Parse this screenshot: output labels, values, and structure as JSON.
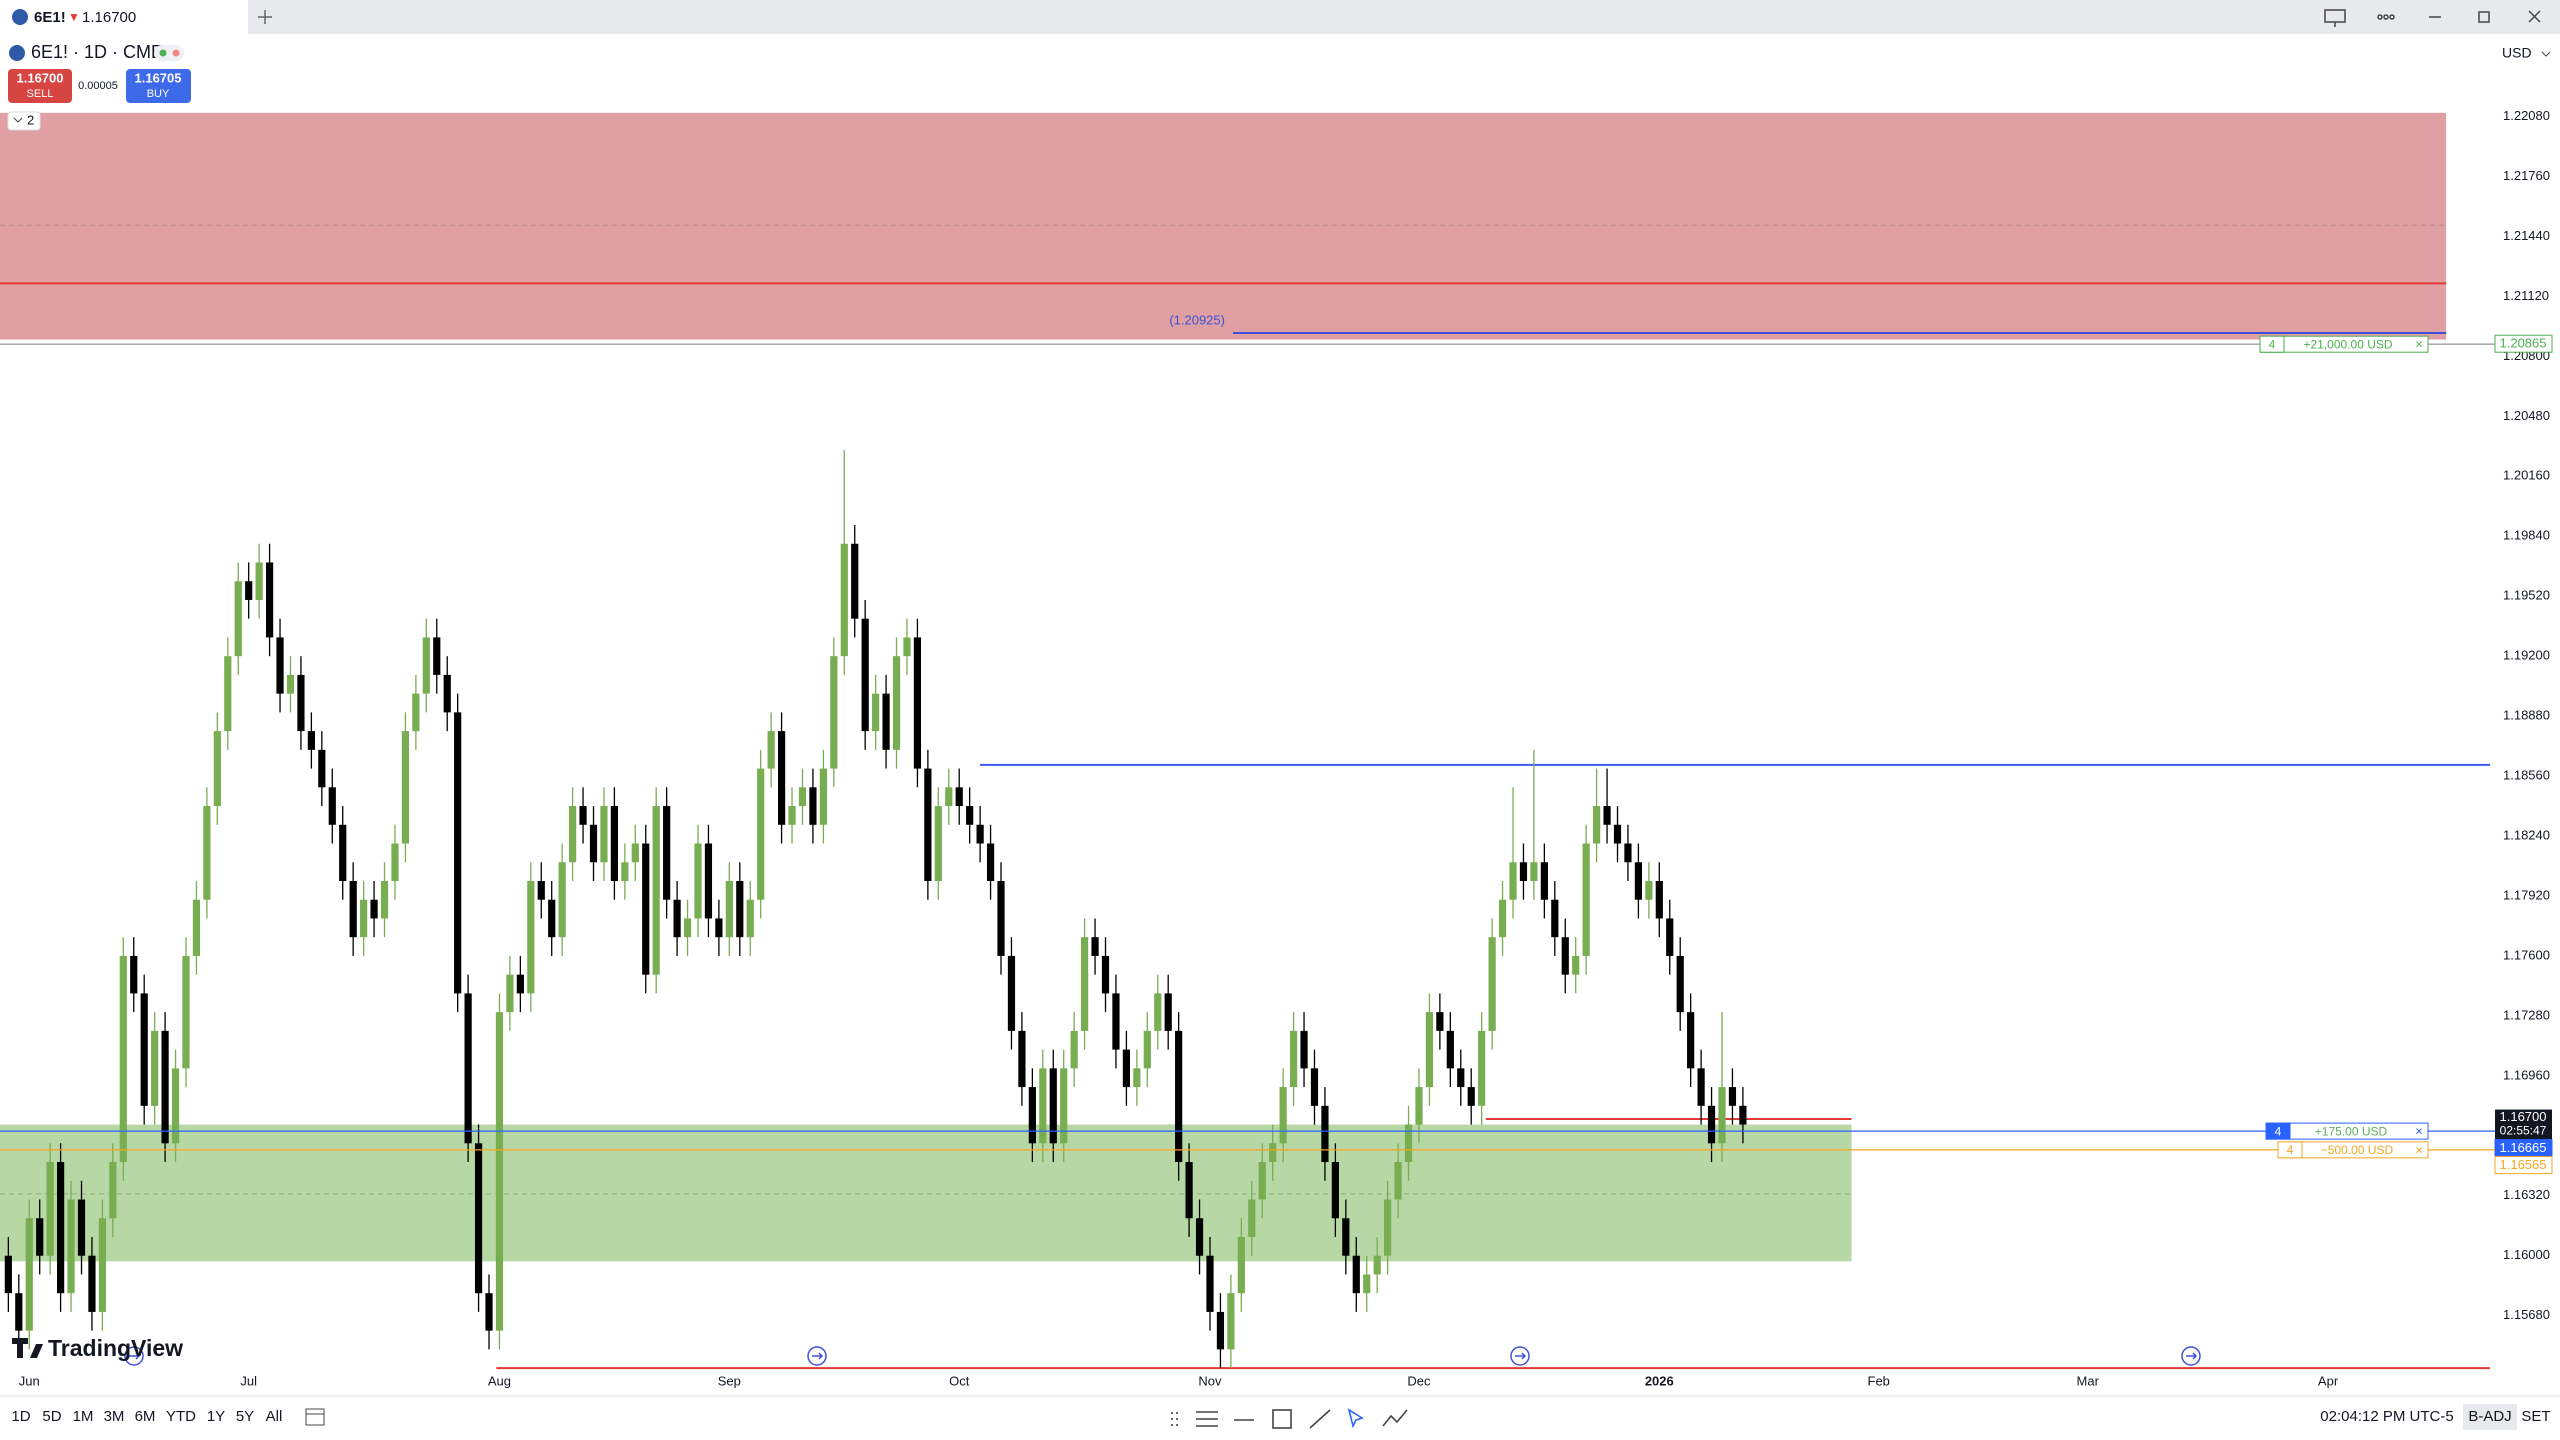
{
  "tab": {
    "symbol": "6E1!",
    "arrow": "▼",
    "price": "1.16700"
  },
  "header": {
    "symbol": "6E1! · 1D · CME",
    "sell_price": "1.16700",
    "sell": "SELL",
    "spread": "0.00005",
    "buy_price": "1.16705",
    "buy": "BUY",
    "currency": "USD",
    "indicators": "2"
  },
  "logo": "TradingView",
  "toolbar": {
    "ranges": [
      "1D",
      "5D",
      "1M",
      "3M",
      "6M",
      "YTD",
      "1Y",
      "5Y",
      "All"
    ],
    "clock": "02:04:12 PM UTC-5",
    "adjust": "B-ADJ",
    "settings": "SET"
  },
  "chart_data": {
    "type": "candlestick",
    "up_color": "#78ad52",
    "down_color": "#000000",
    "grid": false,
    "open": [
      1.16,
      1.158,
      1.156,
      1.162,
      1.16,
      1.165,
      1.158,
      1.163,
      1.16,
      1.157,
      1.162,
      1.165,
      1.176,
      1.174,
      1.168,
      1.172,
      1.166,
      1.17,
      1.176,
      1.179,
      1.184,
      1.188,
      1.192,
      1.196,
      1.195,
      1.197,
      1.193,
      1.19,
      1.191,
      1.188,
      1.187,
      1.185,
      1.183,
      1.18,
      1.177,
      1.179,
      1.178,
      1.18,
      1.182,
      1.188,
      1.19,
      1.193,
      1.191,
      1.189,
      1.174,
      1.166,
      1.158,
      1.156,
      1.173,
      1.175,
      1.174,
      1.18,
      1.179,
      1.177,
      1.181,
      1.184,
      1.183,
      1.181,
      1.184,
      1.18,
      1.181,
      1.182,
      1.175,
      1.184,
      1.179,
      1.177,
      1.178,
      1.182,
      1.178,
      1.177,
      1.18,
      1.177,
      1.179,
      1.186,
      1.188,
      1.183,
      1.184,
      1.185,
      1.183,
      1.186,
      1.192,
      1.198,
      1.194,
      1.188,
      1.19,
      1.187,
      1.192,
      1.193,
      1.186,
      1.18,
      1.184,
      1.185,
      1.184,
      1.183,
      1.182,
      1.18,
      1.176,
      1.172,
      1.169,
      1.166,
      1.17,
      1.166,
      1.17,
      1.172,
      1.177,
      1.176,
      1.174,
      1.171,
      1.169,
      1.17,
      1.172,
      1.174,
      1.172,
      1.165,
      1.162,
      1.16,
      1.157,
      1.155,
      1.158,
      1.161,
      1.163,
      1.165,
      1.166,
      1.169,
      1.172,
      1.17,
      1.168,
      1.165,
      1.162,
      1.16,
      1.158,
      1.159,
      1.16,
      1.163,
      1.165,
      1.167,
      1.169,
      1.173,
      1.172,
      1.17,
      1.169,
      1.168,
      1.172,
      1.177,
      1.179,
      1.181,
      1.18,
      1.181,
      1.179,
      1.177,
      1.175,
      1.176,
      1.182,
      1.184,
      1.183,
      1.182,
      1.181,
      1.179,
      1.18,
      1.178,
      1.176,
      1.173,
      1.17,
      1.168,
      1.166,
      1.169,
      1.168
    ],
    "high": [
      1.161,
      1.159,
      1.163,
      1.163,
      1.166,
      1.166,
      1.164,
      1.164,
      1.161,
      1.163,
      1.166,
      1.177,
      1.177,
      1.175,
      1.173,
      1.173,
      1.171,
      1.177,
      1.18,
      1.185,
      1.189,
      1.193,
      1.197,
      1.197,
      1.198,
      1.198,
      1.194,
      1.192,
      1.192,
      1.189,
      1.188,
      1.186,
      1.184,
      1.181,
      1.18,
      1.18,
      1.181,
      1.183,
      1.189,
      1.191,
      1.194,
      1.194,
      1.192,
      1.19,
      1.175,
      1.167,
      1.159,
      1.174,
      1.176,
      1.176,
      1.181,
      1.181,
      1.18,
      1.182,
      1.185,
      1.185,
      1.184,
      1.185,
      1.185,
      1.182,
      1.183,
      1.183,
      1.185,
      1.185,
      1.18,
      1.179,
      1.183,
      1.183,
      1.179,
      1.181,
      1.181,
      1.18,
      1.187,
      1.189,
      1.189,
      1.185,
      1.186,
      1.186,
      1.187,
      1.193,
      1.203,
      1.199,
      1.195,
      1.191,
      1.191,
      1.193,
      1.194,
      1.194,
      1.187,
      1.185,
      1.186,
      1.186,
      1.185,
      1.184,
      1.183,
      1.181,
      1.177,
      1.173,
      1.17,
      1.171,
      1.171,
      1.171,
      1.173,
      1.178,
      1.178,
      1.177,
      1.175,
      1.172,
      1.171,
      1.173,
      1.175,
      1.175,
      1.173,
      1.166,
      1.163,
      1.161,
      1.158,
      1.159,
      1.162,
      1.164,
      1.166,
      1.167,
      1.17,
      1.173,
      1.173,
      1.171,
      1.169,
      1.166,
      1.163,
      1.161,
      1.16,
      1.161,
      1.164,
      1.166,
      1.168,
      1.17,
      1.174,
      1.174,
      1.173,
      1.171,
      1.17,
      1.173,
      1.178,
      1.18,
      1.185,
      1.182,
      1.187,
      1.182,
      1.18,
      1.178,
      1.177,
      1.183,
      1.186,
      1.186,
      1.184,
      1.183,
      1.182,
      1.181,
      1.181,
      1.179,
      1.177,
      1.174,
      1.171,
      1.169,
      1.173,
      1.17,
      1.169
    ],
    "low": [
      1.157,
      1.155,
      1.155,
      1.159,
      1.159,
      1.157,
      1.157,
      1.159,
      1.156,
      1.156,
      1.161,
      1.164,
      1.173,
      1.167,
      1.167,
      1.165,
      1.165,
      1.169,
      1.175,
      1.178,
      1.183,
      1.187,
      1.191,
      1.194,
      1.194,
      1.192,
      1.189,
      1.189,
      1.187,
      1.186,
      1.184,
      1.182,
      1.179,
      1.176,
      1.176,
      1.177,
      1.177,
      1.179,
      1.181,
      1.187,
      1.189,
      1.19,
      1.188,
      1.173,
      1.165,
      1.157,
      1.155,
      1.155,
      1.172,
      1.173,
      1.173,
      1.178,
      1.176,
      1.176,
      1.18,
      1.182,
      1.18,
      1.18,
      1.179,
      1.179,
      1.18,
      1.174,
      1.174,
      1.178,
      1.176,
      1.176,
      1.177,
      1.177,
      1.176,
      1.176,
      1.176,
      1.176,
      1.178,
      1.185,
      1.182,
      1.182,
      1.183,
      1.182,
      1.182,
      1.185,
      1.191,
      1.193,
      1.187,
      1.187,
      1.186,
      1.186,
      1.191,
      1.185,
      1.179,
      1.179,
      1.183,
      1.183,
      1.182,
      1.181,
      1.179,
      1.175,
      1.171,
      1.168,
      1.165,
      1.165,
      1.165,
      1.165,
      1.169,
      1.171,
      1.175,
      1.173,
      1.17,
      1.168,
      1.168,
      1.169,
      1.171,
      1.171,
      1.164,
      1.161,
      1.159,
      1.156,
      1.154,
      1.154,
      1.157,
      1.16,
      1.162,
      1.164,
      1.165,
      1.168,
      1.169,
      1.167,
      1.164,
      1.161,
      1.159,
      1.157,
      1.157,
      1.158,
      1.159,
      1.162,
      1.164,
      1.166,
      1.168,
      1.171,
      1.169,
      1.168,
      1.167,
      1.167,
      1.171,
      1.176,
      1.178,
      1.179,
      1.179,
      1.178,
      1.176,
      1.174,
      1.174,
      1.175,
      1.181,
      1.182,
      1.181,
      1.18,
      1.178,
      1.178,
      1.177,
      1.175,
      1.172,
      1.169,
      1.167,
      1.165,
      1.165,
      1.167,
      1.166
    ],
    "close": [
      1.158,
      1.156,
      1.162,
      1.16,
      1.165,
      1.158,
      1.163,
      1.16,
      1.157,
      1.162,
      1.165,
      1.176,
      1.174,
      1.168,
      1.172,
      1.166,
      1.17,
      1.176,
      1.179,
      1.184,
      1.188,
      1.192,
      1.196,
      1.195,
      1.197,
      1.193,
      1.19,
      1.191,
      1.188,
      1.187,
      1.185,
      1.183,
      1.18,
      1.177,
      1.179,
      1.178,
      1.18,
      1.182,
      1.188,
      1.19,
      1.193,
      1.191,
      1.189,
      1.174,
      1.166,
      1.158,
      1.156,
      1.173,
      1.175,
      1.174,
      1.18,
      1.179,
      1.177,
      1.181,
      1.184,
      1.183,
      1.181,
      1.184,
      1.18,
      1.181,
      1.182,
      1.175,
      1.184,
      1.179,
      1.177,
      1.178,
      1.182,
      1.178,
      1.177,
      1.18,
      1.177,
      1.179,
      1.186,
      1.188,
      1.183,
      1.184,
      1.185,
      1.183,
      1.186,
      1.192,
      1.198,
      1.194,
      1.188,
      1.19,
      1.187,
      1.192,
      1.193,
      1.186,
      1.18,
      1.184,
      1.185,
      1.184,
      1.183,
      1.182,
      1.18,
      1.176,
      1.172,
      1.169,
      1.166,
      1.17,
      1.166,
      1.17,
      1.172,
      1.177,
      1.176,
      1.174,
      1.171,
      1.169,
      1.17,
      1.172,
      1.174,
      1.172,
      1.165,
      1.162,
      1.16,
      1.157,
      1.155,
      1.158,
      1.161,
      1.163,
      1.165,
      1.166,
      1.169,
      1.172,
      1.17,
      1.168,
      1.165,
      1.162,
      1.16,
      1.158,
      1.159,
      1.16,
      1.163,
      1.165,
      1.167,
      1.169,
      1.173,
      1.172,
      1.17,
      1.169,
      1.168,
      1.172,
      1.177,
      1.179,
      1.181,
      1.18,
      1.181,
      1.179,
      1.177,
      1.175,
      1.176,
      1.182,
      1.184,
      1.183,
      1.182,
      1.181,
      1.179,
      1.18,
      1.178,
      1.176,
      1.173,
      1.17,
      1.168,
      1.166,
      1.169,
      1.168,
      1.167
    ],
    "xlim": [
      -0.8,
      237.5
    ],
    "xticks": [
      {
        "value": 2,
        "label": "Jun"
      },
      {
        "value": 23,
        "label": "Jul"
      },
      {
        "value": 47,
        "label": "Aug"
      },
      {
        "value": 69,
        "label": "Sep"
      },
      {
        "value": 91,
        "label": "Oct"
      },
      {
        "value": 115,
        "label": "Nov"
      },
      {
        "value": 135,
        "label": "Dec"
      },
      {
        "value": 158,
        "label": "2026",
        "bold": true
      },
      {
        "value": 179,
        "label": "Feb"
      },
      {
        "value": 199,
        "label": "Mar"
      },
      {
        "value": 222,
        "label": "Apr"
      }
    ],
    "ylim": [
      1.1539,
      1.2251
    ],
    "yticks": [
      {
        "value": 1.2208,
        "label": "1.22080"
      },
      {
        "value": 1.2176,
        "label": "1.21760"
      },
      {
        "value": 1.2144,
        "label": "1.21440"
      },
      {
        "value": 1.2112,
        "label": "1.21120"
      },
      {
        "value": 1.208,
        "label": "1.20800"
      },
      {
        "value": 1.2048,
        "label": "1.20480"
      },
      {
        "value": 1.2016,
        "label": "1.20160"
      },
      {
        "value": 1.1984,
        "label": "1.19840"
      },
      {
        "value": 1.1952,
        "label": "1.19520"
      },
      {
        "value": 1.192,
        "label": "1.19200"
      },
      {
        "value": 1.1888,
        "label": "1.18880"
      },
      {
        "value": 1.1856,
        "label": "1.18560"
      },
      {
        "value": 1.1824,
        "label": "1.18240"
      },
      {
        "value": 1.1792,
        "label": "1.17920"
      },
      {
        "value": 1.176,
        "label": "1.17600"
      },
      {
        "value": 1.1728,
        "label": "1.17280"
      },
      {
        "value": 1.1696,
        "label": "1.16960"
      },
      {
        "value": 1.1632,
        "label": "1.16320"
      },
      {
        "value": 1.16,
        "label": "1.16000"
      },
      {
        "value": 1.1568,
        "label": "1.15680"
      }
    ],
    "zones": [
      {
        "top": 1.221,
        "bottom": 1.2089,
        "start": -0.8,
        "end": 233.3,
        "color": "#e09fa3"
      },
      {
        "top": 1.167,
        "bottom": 1.1597,
        "start": -0.8,
        "end": 176.4,
        "color": "#b7d7a5"
      }
    ],
    "lines": [
      {
        "value": 1.215,
        "start": -0.8,
        "end": 233.3,
        "color": "#b98c8e",
        "dashed": true
      },
      {
        "value": 1.2119,
        "start": -0.8,
        "end": 233.3,
        "color": "#e53935"
      },
      {
        "value": 1.20925,
        "label": "(1.20925)",
        "start": 117.2,
        "end": 233.3,
        "color": "#3f51d8"
      },
      {
        "value": 1.1862,
        "start": 93,
        "end": 237.5,
        "color": "#3d5afe"
      },
      {
        "value": 1.1673,
        "start": 141.4,
        "end": 176.4,
        "color": "#e53935"
      },
      {
        "value": 1.1633,
        "start": -0.8,
        "end": 176.4,
        "color": "#8fae80",
        "dashed": true
      },
      {
        "value": 1.154,
        "start": 46.7,
        "end": 237.5,
        "color": "#e53935"
      }
    ],
    "orders": [
      {
        "value": 1.20865,
        "label": "1.20865",
        "qty": "4",
        "pnl": "+21,000.00 USD",
        "cancel": "×",
        "color": "#4caf50",
        "line_color": "#9e9e9e",
        "filled": false
      },
      {
        "value": 1.16665,
        "label": "1.16665",
        "qty": "4",
        "pnl": "+175.00 USD",
        "cancel": "×",
        "color": "#2962ff",
        "line_color": "#2962ff",
        "filled": true
      },
      {
        "value": 1.16565,
        "label": "1.16565",
        "qty": "4",
        "pnl": "−500.00 USD",
        "cancel": "×",
        "color": "#f5a623",
        "line_color": "#f5a623",
        "filled": false
      }
    ],
    "last": {
      "value": 1.167,
      "label": "1.16700",
      "countdown": "02:55:47"
    }
  }
}
